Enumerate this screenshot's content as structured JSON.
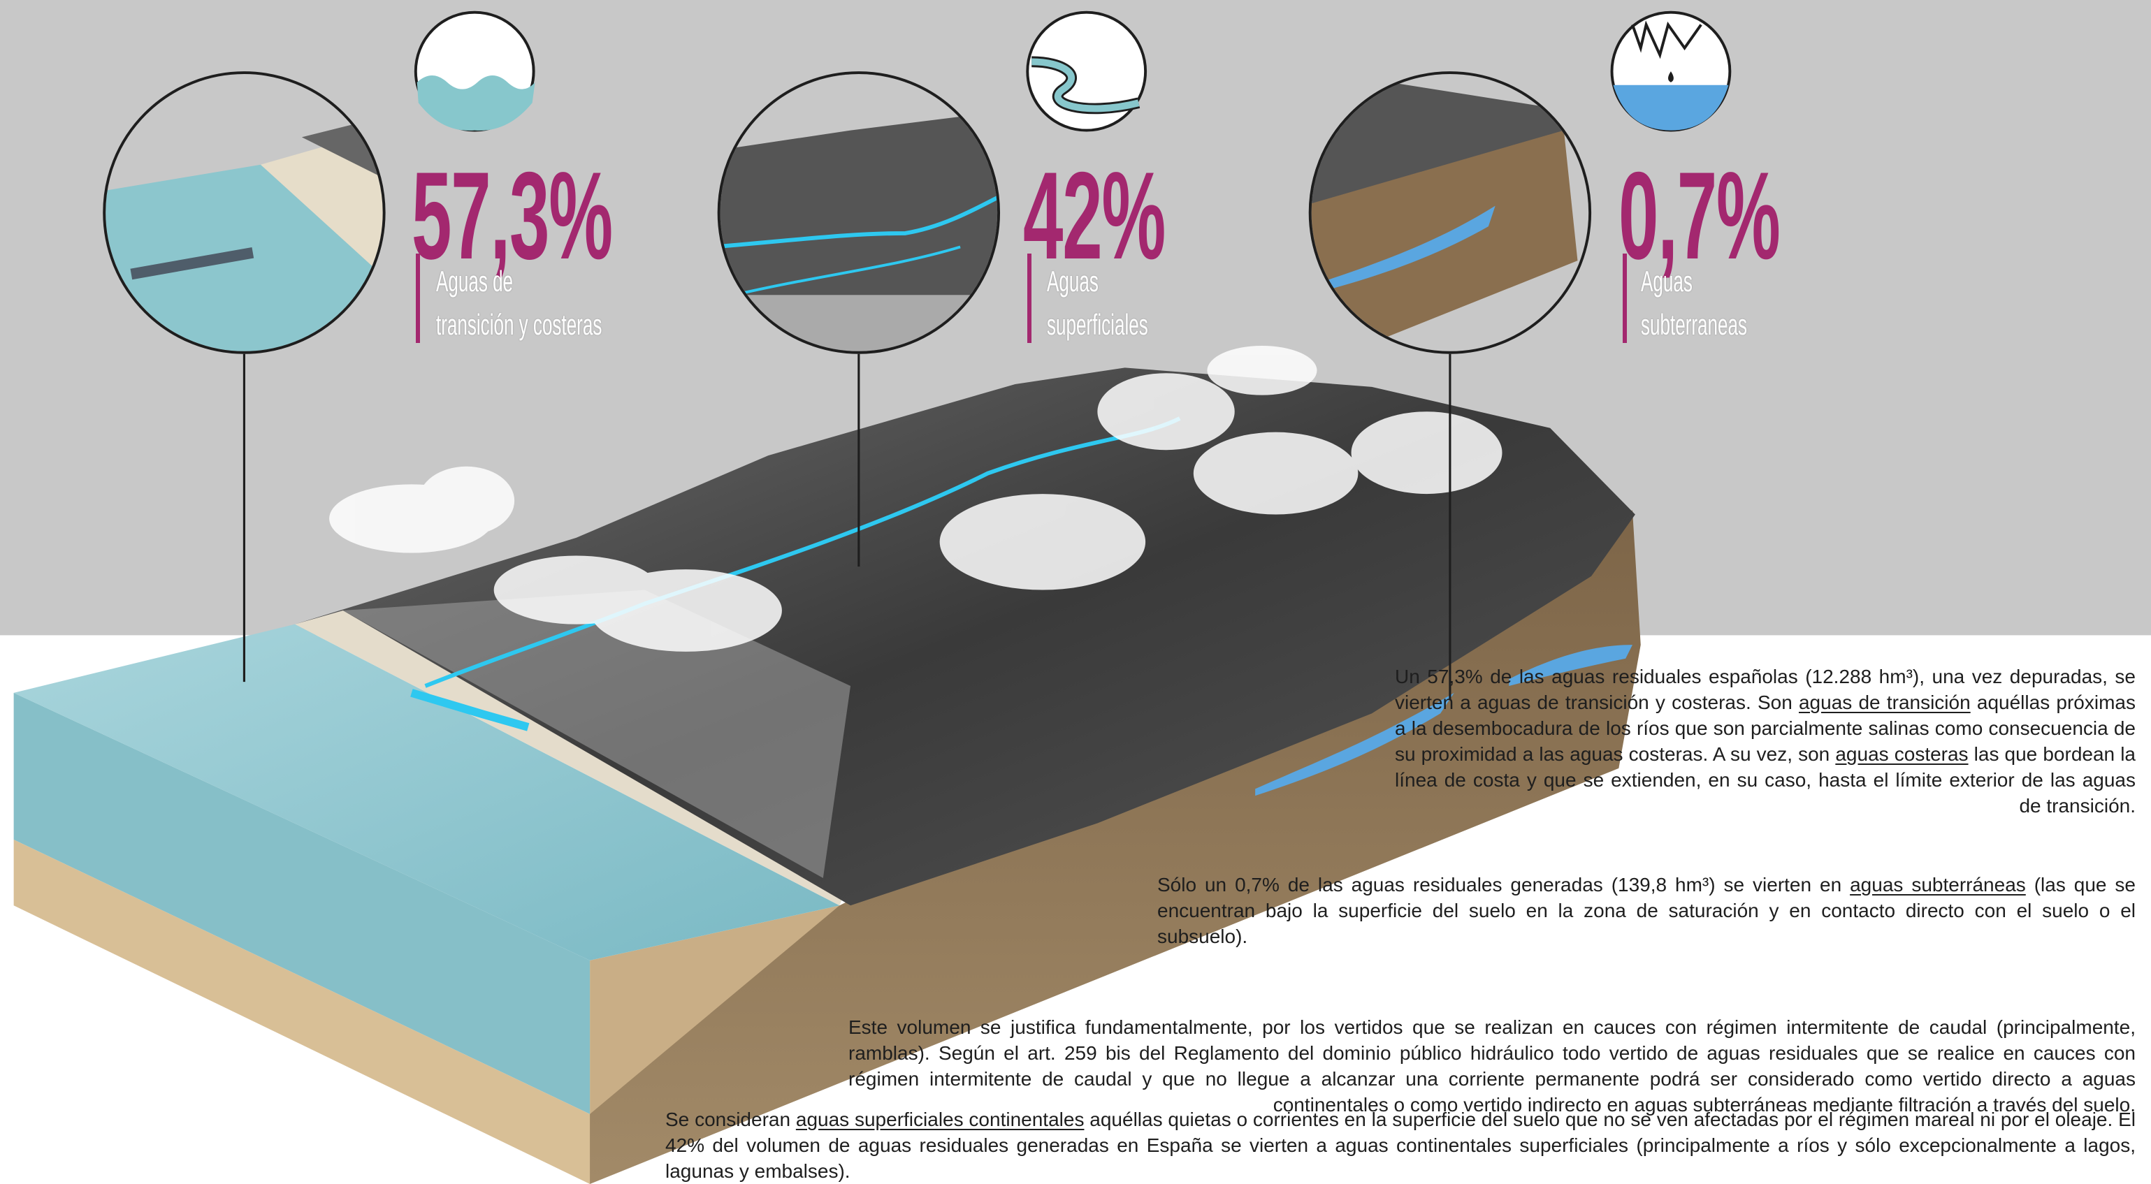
{
  "stats": [
    {
      "value": "57,3%",
      "label": [
        "Aguas de",
        "transición y costeras"
      ]
    },
    {
      "value": "42%",
      "label": [
        "Aguas",
        "superficiales"
      ]
    },
    {
      "value": "0,7%",
      "label": [
        "Aguas",
        "subterraneas"
      ]
    }
  ],
  "text": {
    "paragraphs": [
      [
        {
          "text": "Un 57,3% de las aguas residuales españolas (12.288 hm³), una vez depuradas, se vierten a aguas de transición y costeras. Son "
        },
        {
          "text": "aguas de transición",
          "underline": true
        },
        {
          "text": " aquéllas próximas a la desembocadura de los ríos que son parcialmente salinas como consecuencia de su proximidad a las aguas costeras. A su vez, son "
        },
        {
          "text": "aguas costeras",
          "underline": true
        },
        {
          "text": " las que bordean la línea de costa y que se extienden, en su caso, hasta el límite exterior de las aguas de transición."
        }
      ],
      [
        {
          "text": "Sólo un 0,7% de las aguas residuales generadas (139,8 hm³) se vierten en "
        },
        {
          "text": "aguas subterráneas",
          "underline": true
        },
        {
          "text": " (las que se encuentran bajo la superficie del suelo en la zona de saturación y en contacto directo con el suelo o el subsuelo)."
        }
      ],
      [
        {
          "text": "Este volumen se justifica fundamentalmente, por los vertidos que se realizan en cauces con régimen intermitente de caudal (principalmente, ramblas). Según el art. 259 bis del Reglamento del dominio público hidráulico todo vertido de aguas residuales que se realice en cauces con régimen intermitente de caudal y que no llegue a alcanzar una corriente permanente podrá ser considerado como vertido directo a aguas continentales o como vertido indirecto en aguas subterráneas mediante filtración a través del suelo."
        }
      ],
      [
        {
          "text": "Se consideran "
        },
        {
          "text": "aguas superficiales continentales",
          "underline": true
        },
        {
          "text": " aquéllas quietas o corrientes en la superficie del suelo que no se ven afectadas por el régimen mareal ni por el oleaje. El 42% del volumen de aguas residuales generadas en España se vierten a aguas continentales superficiales (principalmente a ríos y sólo excepcionalmente a lagos, lagunas y embalses)."
        }
      ]
    ]
  }
}
